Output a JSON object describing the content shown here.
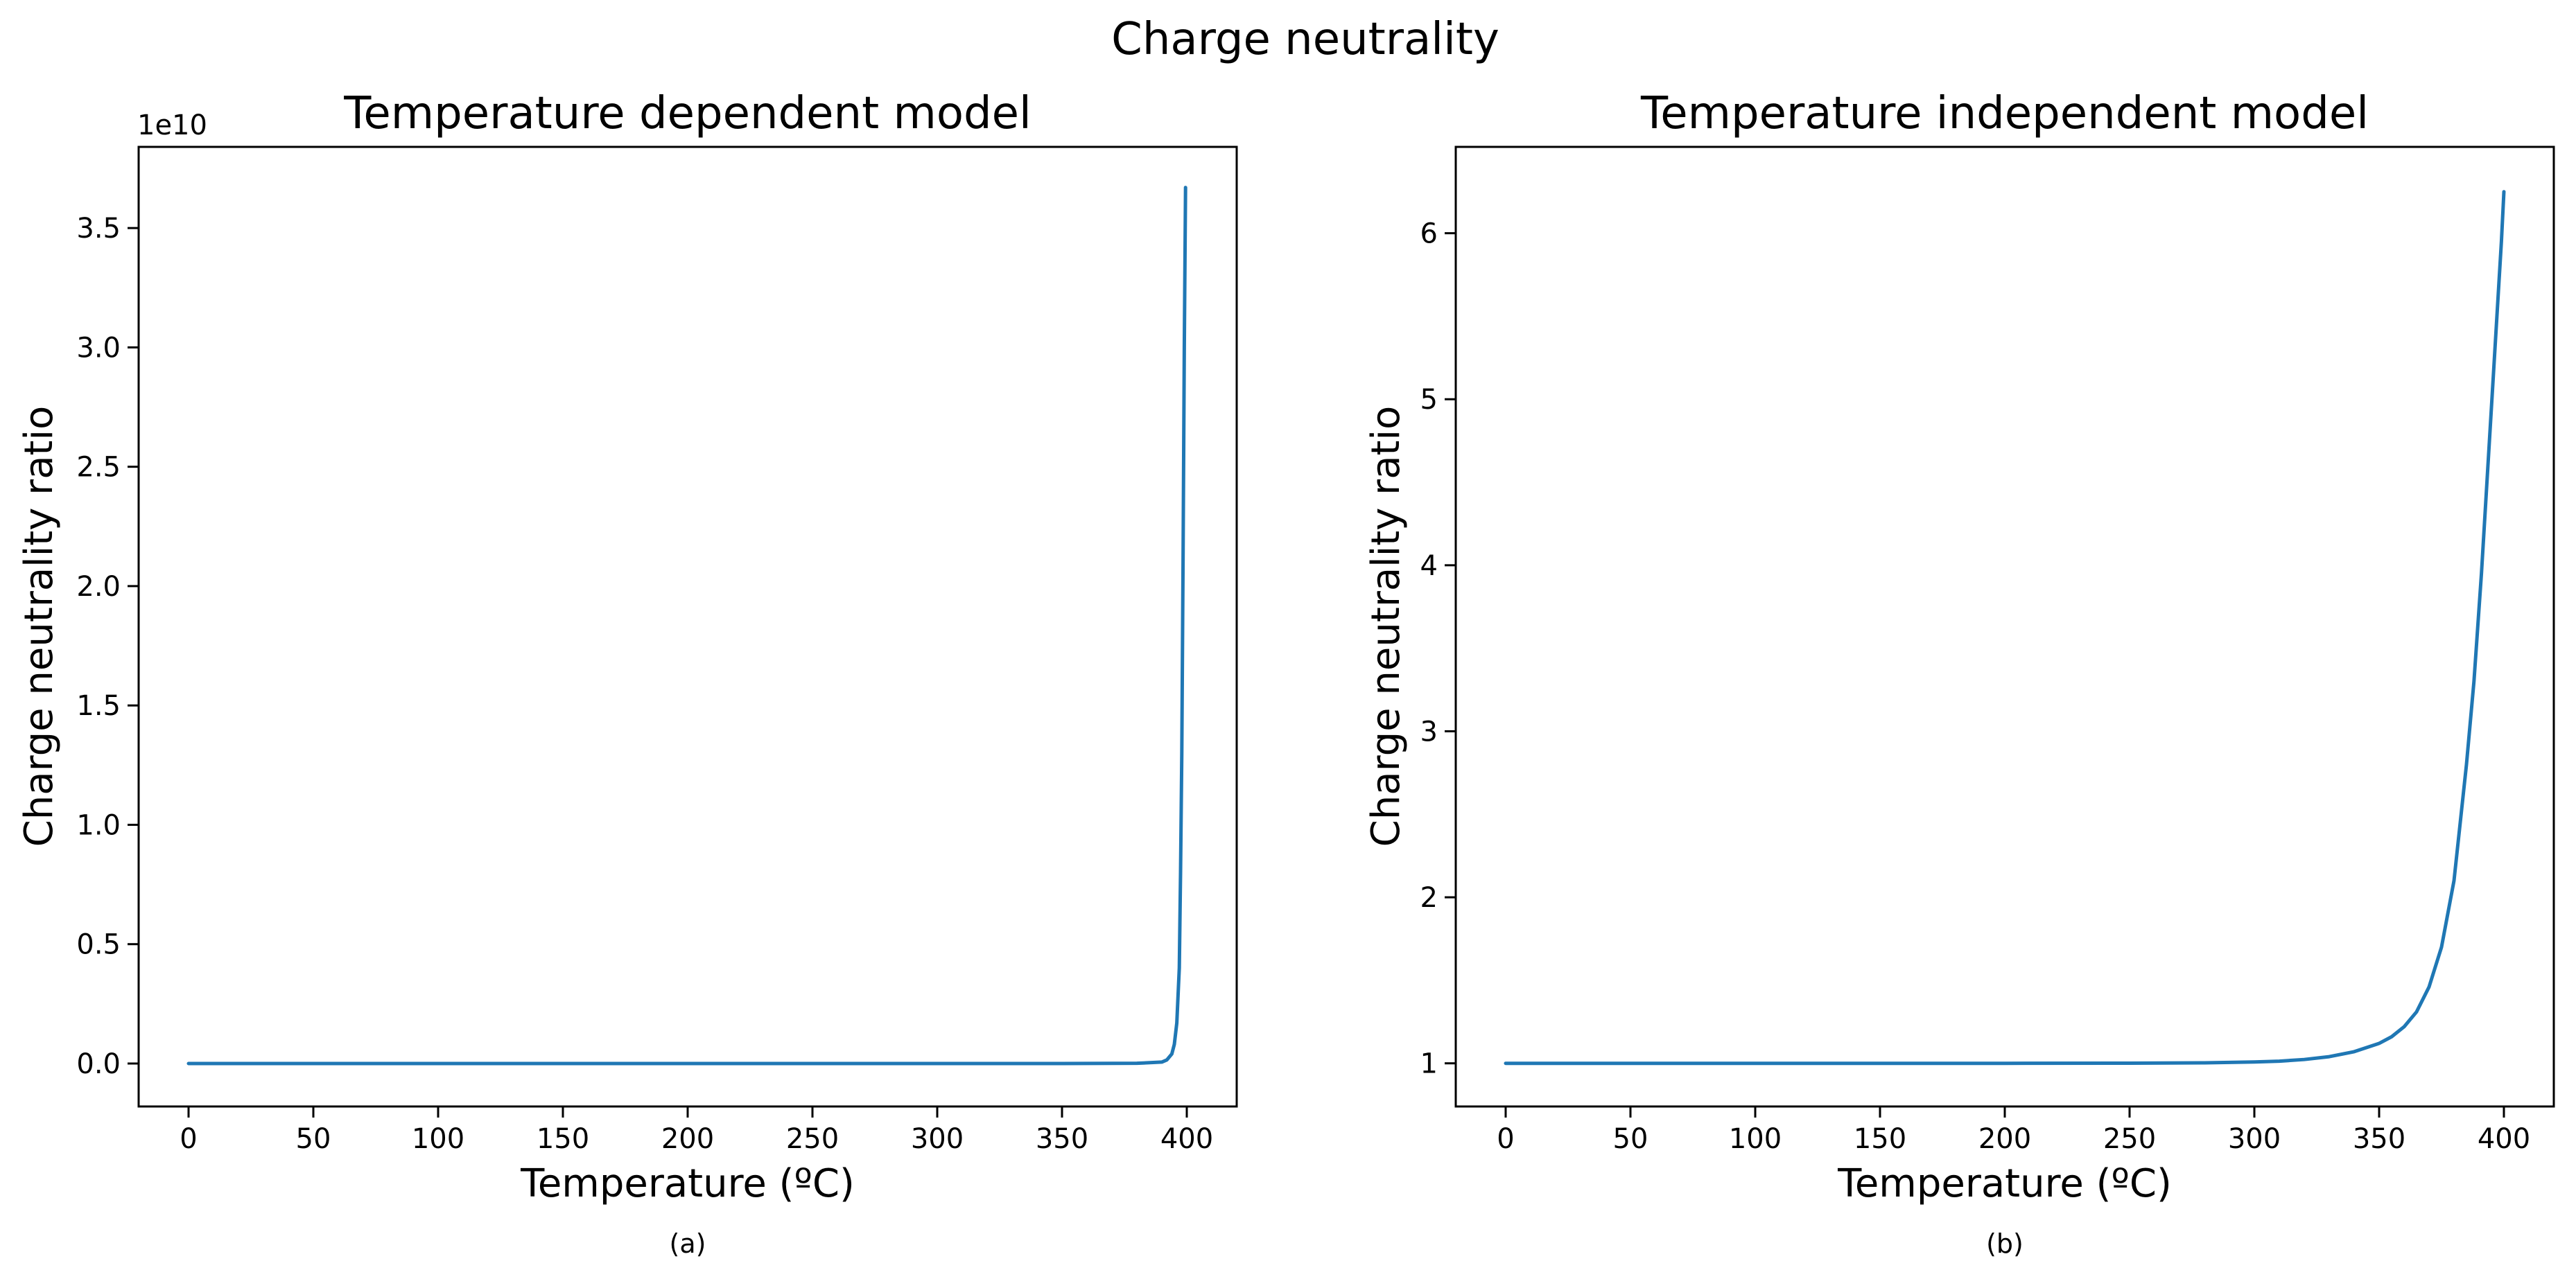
{
  "figure": {
    "suptitle": "Charge neutrality",
    "line_color": "#1f77b4"
  },
  "chart_data": [
    {
      "type": "line",
      "title": "Temperature dependent model",
      "xlabel": "Temperature (ºC)",
      "ylabel": "Charge neutrality ratio",
      "caption": "(a)",
      "y_offset_label": "1e10",
      "xlim": [
        -20,
        420
      ],
      "ylim": [
        -0.18,
        3.84
      ],
      "x_ticks": [
        0,
        50,
        100,
        150,
        200,
        250,
        300,
        350,
        400
      ],
      "x_tick_labels": [
        "0",
        "50",
        "100",
        "150",
        "200",
        "250",
        "300",
        "350",
        "400"
      ],
      "y_ticks": [
        0.0,
        0.5,
        1.0,
        1.5,
        2.0,
        2.5,
        3.0,
        3.5
      ],
      "y_tick_labels": [
        "0.0",
        "0.5",
        "1.0",
        "1.5",
        "2.0",
        "2.5",
        "3.0",
        "3.5"
      ],
      "grid": false,
      "series": [
        {
          "x": [
            0,
            50,
            100,
            150,
            200,
            250,
            300,
            350,
            380,
            390,
            392,
            394,
            395,
            396,
            397,
            397.5,
            398,
            398.5,
            399,
            399.5
          ],
          "y": [
            0,
            0,
            0,
            0,
            0,
            0,
            0,
            0,
            0.001,
            0.006,
            0.015,
            0.04,
            0.08,
            0.17,
            0.4,
            0.8,
            1.3,
            2.1,
            3.0,
            3.67
          ]
        }
      ]
    },
    {
      "type": "line",
      "title": "Temperature independent model",
      "xlabel": "Temperature (ºC)",
      "ylabel": "Charge neutrality ratio",
      "caption": "(b)",
      "xlim": [
        -20,
        420
      ],
      "ylim": [
        0.74,
        6.52
      ],
      "x_ticks": [
        0,
        50,
        100,
        150,
        200,
        250,
        300,
        350,
        400
      ],
      "x_tick_labels": [
        "0",
        "50",
        "100",
        "150",
        "200",
        "250",
        "300",
        "350",
        "400"
      ],
      "y_ticks": [
        1,
        2,
        3,
        4,
        5,
        6
      ],
      "y_tick_labels": [
        "1",
        "2",
        "3",
        "4",
        "5",
        "6"
      ],
      "grid": false,
      "series": [
        {
          "x": [
            0,
            50,
            100,
            150,
            200,
            250,
            280,
            300,
            310,
            320,
            330,
            340,
            350,
            355,
            360,
            365,
            370,
            375,
            380,
            385,
            388,
            391,
            394,
            396,
            398,
            399,
            400
          ],
          "y": [
            1.0,
            1.0,
            1.0,
            1.0,
            1.0,
            1.001,
            1.003,
            1.008,
            1.013,
            1.023,
            1.04,
            1.07,
            1.12,
            1.16,
            1.22,
            1.31,
            1.46,
            1.7,
            2.1,
            2.8,
            3.3,
            3.95,
            4.7,
            5.2,
            5.7,
            5.95,
            6.25
          ]
        }
      ]
    }
  ]
}
